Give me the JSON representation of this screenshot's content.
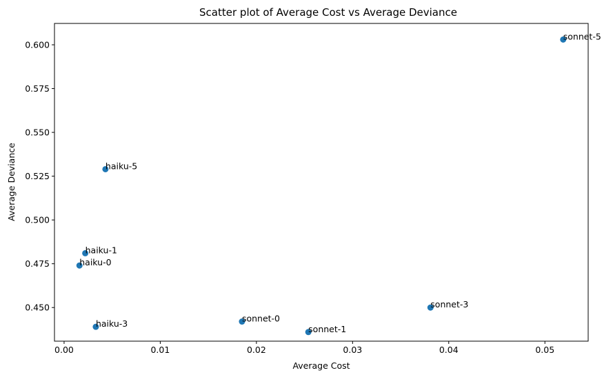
{
  "chart_data": {
    "type": "scatter",
    "title": "Scatter plot of Average Cost vs Average Deviance",
    "xlabel": "Average Cost",
    "ylabel": "Average Deviance",
    "xlim": [
      -0.001,
      0.0545
    ],
    "ylim": [
      0.4308,
      0.6122
    ],
    "xticks": [
      0.0,
      0.01,
      0.02,
      0.03,
      0.04,
      0.05
    ],
    "xtick_labels": [
      "0.00",
      "0.01",
      "0.02",
      "0.03",
      "0.04",
      "0.05"
    ],
    "yticks": [
      0.45,
      0.475,
      0.5,
      0.525,
      0.55,
      0.575,
      0.6
    ],
    "ytick_labels": [
      "0.450",
      "0.475",
      "0.500",
      "0.525",
      "0.550",
      "0.575",
      "0.600"
    ],
    "grid": false,
    "marker_color": "#1f77b4",
    "points": [
      {
        "label": "haiku-0",
        "x": 0.0016,
        "y": 0.474
      },
      {
        "label": "haiku-1",
        "x": 0.0022,
        "y": 0.481
      },
      {
        "label": "haiku-3",
        "x": 0.0033,
        "y": 0.439
      },
      {
        "label": "haiku-5",
        "x": 0.0043,
        "y": 0.529
      },
      {
        "label": "sonnet-0",
        "x": 0.0185,
        "y": 0.442
      },
      {
        "label": "sonnet-1",
        "x": 0.0254,
        "y": 0.436
      },
      {
        "label": "sonnet-3",
        "x": 0.0381,
        "y": 0.45
      },
      {
        "label": "sonnet-5",
        "x": 0.0519,
        "y": 0.603
      }
    ]
  }
}
